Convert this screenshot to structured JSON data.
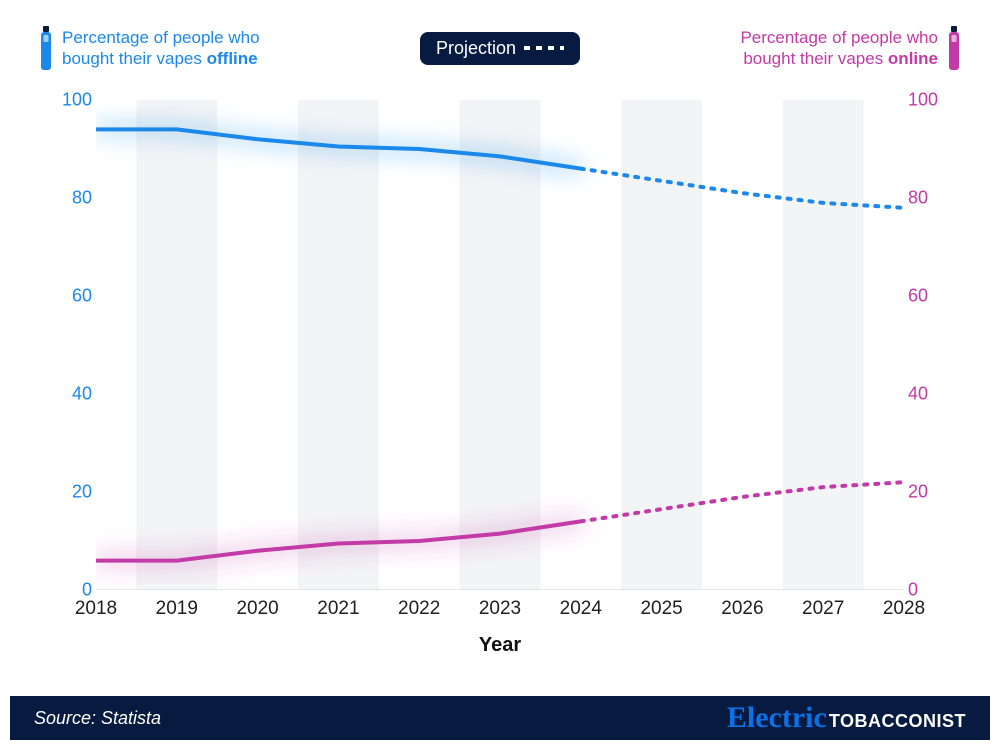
{
  "series_offline": {
    "label_line1": "Percentage of people who",
    "label_line2_pre": "bought their vapes ",
    "label_line2_bold": "offline",
    "color": "#1b88ea",
    "icon_fill": "#1b88ea"
  },
  "series_online": {
    "label_line1": "Percentage of people who",
    "label_line2_pre": "bought their vapes ",
    "label_line2_bold": "online",
    "color": "#c23aa6",
    "icon_fill": "#c23aa6"
  },
  "projection_label": "Projection",
  "chart": {
    "type": "line",
    "years": [
      2018,
      2019,
      2020,
      2021,
      2022,
      2023,
      2024,
      2025,
      2026,
      2027,
      2028
    ],
    "projection_start_year": 2024,
    "offline_values": [
      94,
      94,
      92,
      90.5,
      90,
      88.5,
      86,
      83.5,
      81,
      79,
      78
    ],
    "online_values": [
      6,
      6,
      8,
      9.5,
      10,
      11.5,
      14,
      16.5,
      19,
      21,
      22
    ],
    "ylim": [
      0,
      100
    ],
    "yticks": [
      0,
      20,
      40,
      60,
      80,
      100
    ],
    "line_width": 4,
    "dash_pattern": "3 8",
    "background_color": "#ffffff",
    "band_color": "#f3f4f6",
    "axis_font_size": 18,
    "xlabel": "Year",
    "halo_blur": 12
  },
  "footer": {
    "source": "Source: Statista",
    "brand_script": "Electric",
    "brand_caps": "TOBACCONIST",
    "bg": "#071a3f"
  }
}
